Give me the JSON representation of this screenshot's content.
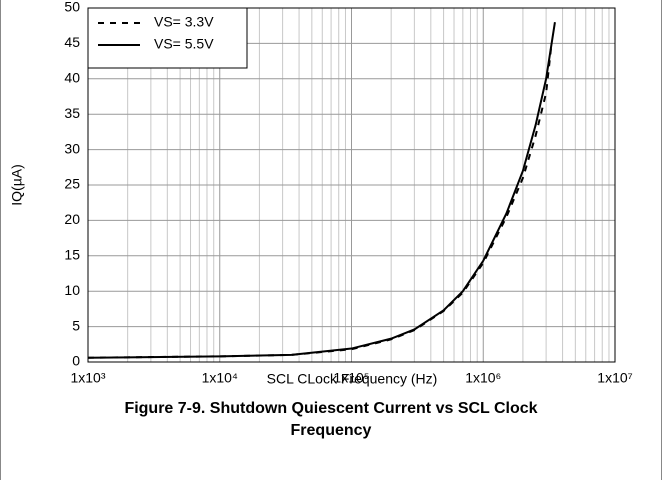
{
  "chart_data": {
    "type": "line",
    "title": "Figure 7-9. Shutdown Quiescent Current vs SCL Clock Frequency",
    "xlabel": "SCL CLock Frequency (Hz)",
    "ylabel": "IQ(µA)",
    "xscale": "log",
    "xlim": [
      1000,
      10000000
    ],
    "xticks": [
      {
        "value": 1000,
        "label": "1x10³"
      },
      {
        "value": 10000,
        "label": "1x10⁴"
      },
      {
        "value": 100000,
        "label": "1x10⁵"
      },
      {
        "value": 1000000,
        "label": "1x10⁶"
      },
      {
        "value": 10000000,
        "label": "1x10⁷"
      }
    ],
    "ylim": [
      0,
      50
    ],
    "yticks": [
      0,
      5,
      10,
      15,
      20,
      25,
      30,
      35,
      40,
      45,
      50
    ],
    "grid": true,
    "legend": "upper left",
    "series": [
      {
        "name": "VS= 3.3V",
        "color": "#000000",
        "dash": true,
        "x": [
          1000,
          10000,
          35000,
          100000,
          200000,
          300000,
          500000,
          700000,
          1000000,
          1500000,
          2000000,
          2500000,
          3000000,
          3300000
        ],
        "values": [
          0.6,
          0.8,
          1.0,
          1.8,
          3.2,
          4.5,
          7.2,
          9.8,
          14,
          20.5,
          26,
          32,
          38,
          45
        ]
      },
      {
        "name": "VS= 5.5V",
        "color": "#000000",
        "dash": false,
        "x": [
          1000,
          10000,
          35000,
          100000,
          200000,
          300000,
          500000,
          700000,
          1000000,
          1500000,
          2000000,
          2500000,
          3000000,
          3500000
        ],
        "values": [
          0.6,
          0.8,
          1.0,
          1.9,
          3.3,
          4.6,
          7.3,
          10,
          14.3,
          21,
          27,
          33.5,
          40,
          48
        ]
      }
    ]
  }
}
